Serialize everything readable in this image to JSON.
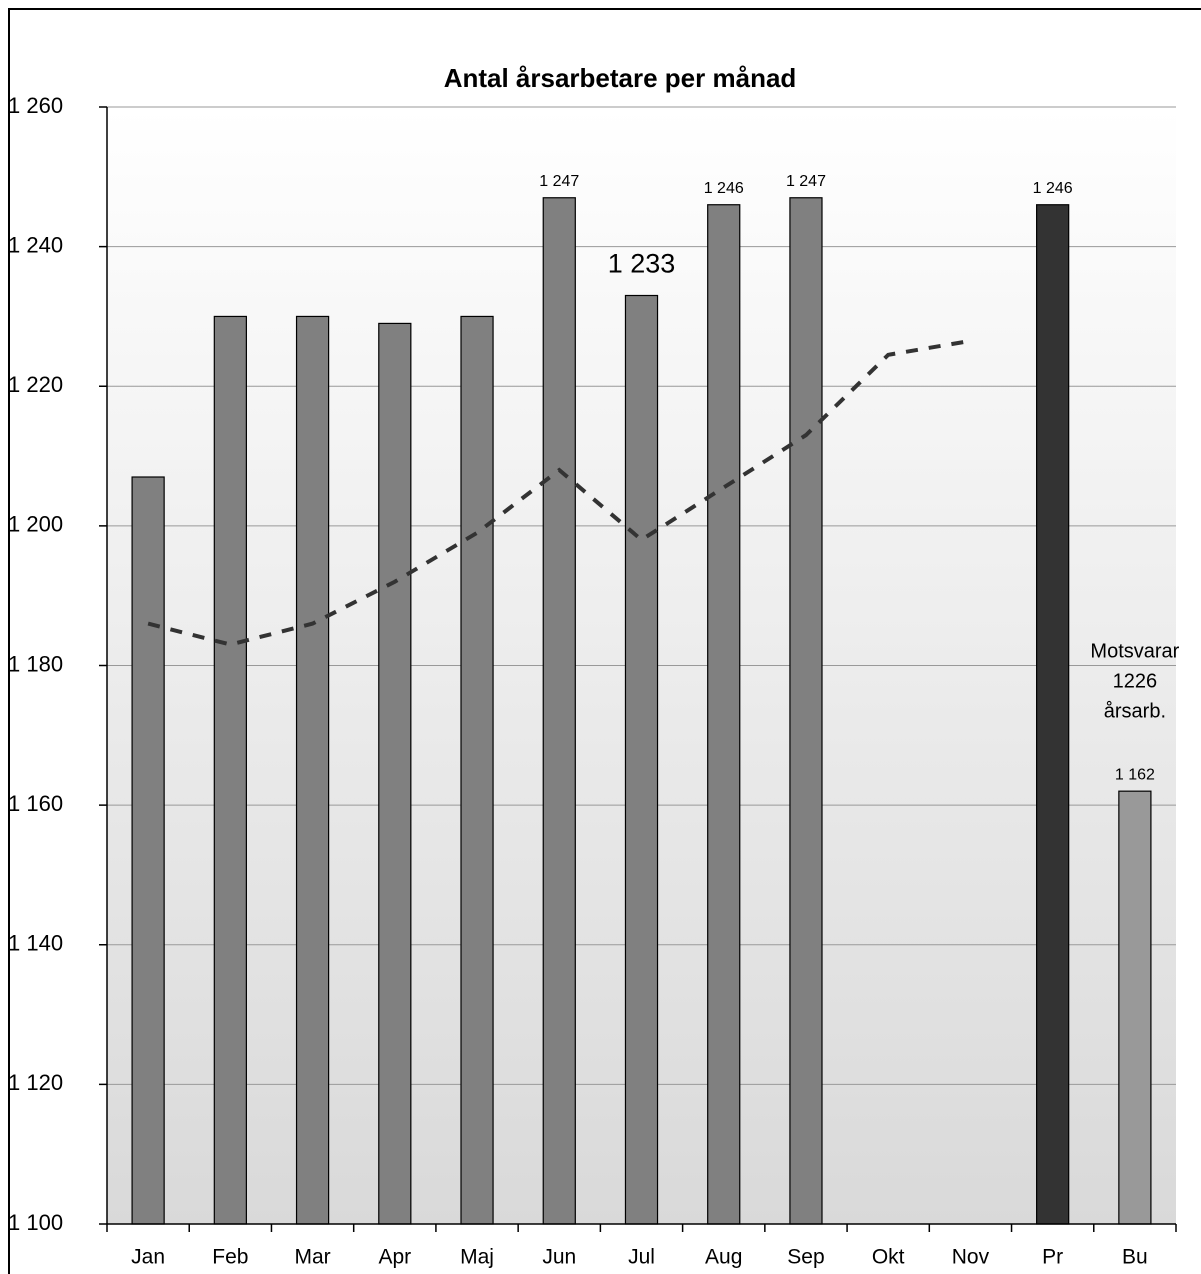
{
  "chart_data": {
    "type": "bar",
    "title": "Antal årsarbetare per månad",
    "categories": [
      "Jan",
      "Feb",
      "Mar",
      "Apr",
      "Maj",
      "Jun",
      "Jul",
      "Aug",
      "Sep",
      "Okt",
      "Nov",
      "Pr",
      "Bu"
    ],
    "series": [
      {
        "type": "bar",
        "values": [
          1207,
          1230,
          1230,
          1229,
          1230,
          1247,
          1233,
          1246,
          1247,
          null,
          null,
          1246,
          1162
        ],
        "value_labels": [
          null,
          null,
          null,
          null,
          null,
          "1 247",
          "1 233",
          "1 246",
          "1 247",
          null,
          null,
          "1 246",
          "1 162"
        ],
        "colors": [
          "#808080",
          "#808080",
          "#808080",
          "#808080",
          "#808080",
          "#808080",
          "#808080",
          "#808080",
          "#808080",
          "#808080",
          "#808080",
          "#333333",
          "#999999"
        ]
      },
      {
        "type": "line",
        "color": "#333333",
        "dashed": true,
        "values": [
          1186,
          1183,
          1186,
          1192,
          1199,
          1208,
          1198,
          1205.5,
          1213,
          1224.5,
          1226.5,
          null,
          null
        ]
      }
    ],
    "annotation": [
      "Motsvarar",
      "1226",
      "årsarb."
    ],
    "ylim": [
      1100,
      1260
    ],
    "yticks": [
      {
        "value": 1100,
        "label": "1 100"
      },
      {
        "value": 1120,
        "label": "1 120"
      },
      {
        "value": 1140,
        "label": "1 140"
      },
      {
        "value": 1160,
        "label": "1 160"
      },
      {
        "value": 1180,
        "label": "1 180"
      },
      {
        "value": 1200,
        "label": "1 200"
      },
      {
        "value": 1220,
        "label": "1 220"
      },
      {
        "value": 1240,
        "label": "1 240"
      },
      {
        "value": 1260,
        "label": "1 260"
      }
    ],
    "grid": true
  }
}
